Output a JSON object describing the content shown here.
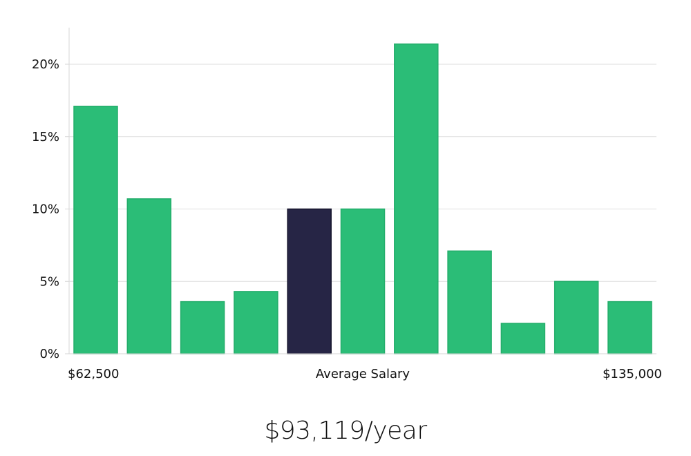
{
  "chart_data": {
    "type": "bar",
    "values": [
      17.1,
      10.7,
      3.6,
      4.3,
      10.0,
      10.0,
      21.4,
      7.1,
      2.1,
      5.0,
      3.6
    ],
    "highlight_index": 4,
    "ylim": [
      0,
      22.5
    ],
    "y_ticks": [
      0,
      5,
      10,
      15,
      20
    ],
    "y_tick_suffix": "%",
    "x_label_left": "$62,500",
    "x_label_center": "Average Salary",
    "x_label_right": "$135,000",
    "grid": true,
    "colors": {
      "bar": "#2bbd77",
      "bar_edge": "#23ad6a",
      "highlight": "#262545",
      "highlight_edge": "#15142c"
    }
  },
  "summary": {
    "salary": "$93,119/year"
  }
}
